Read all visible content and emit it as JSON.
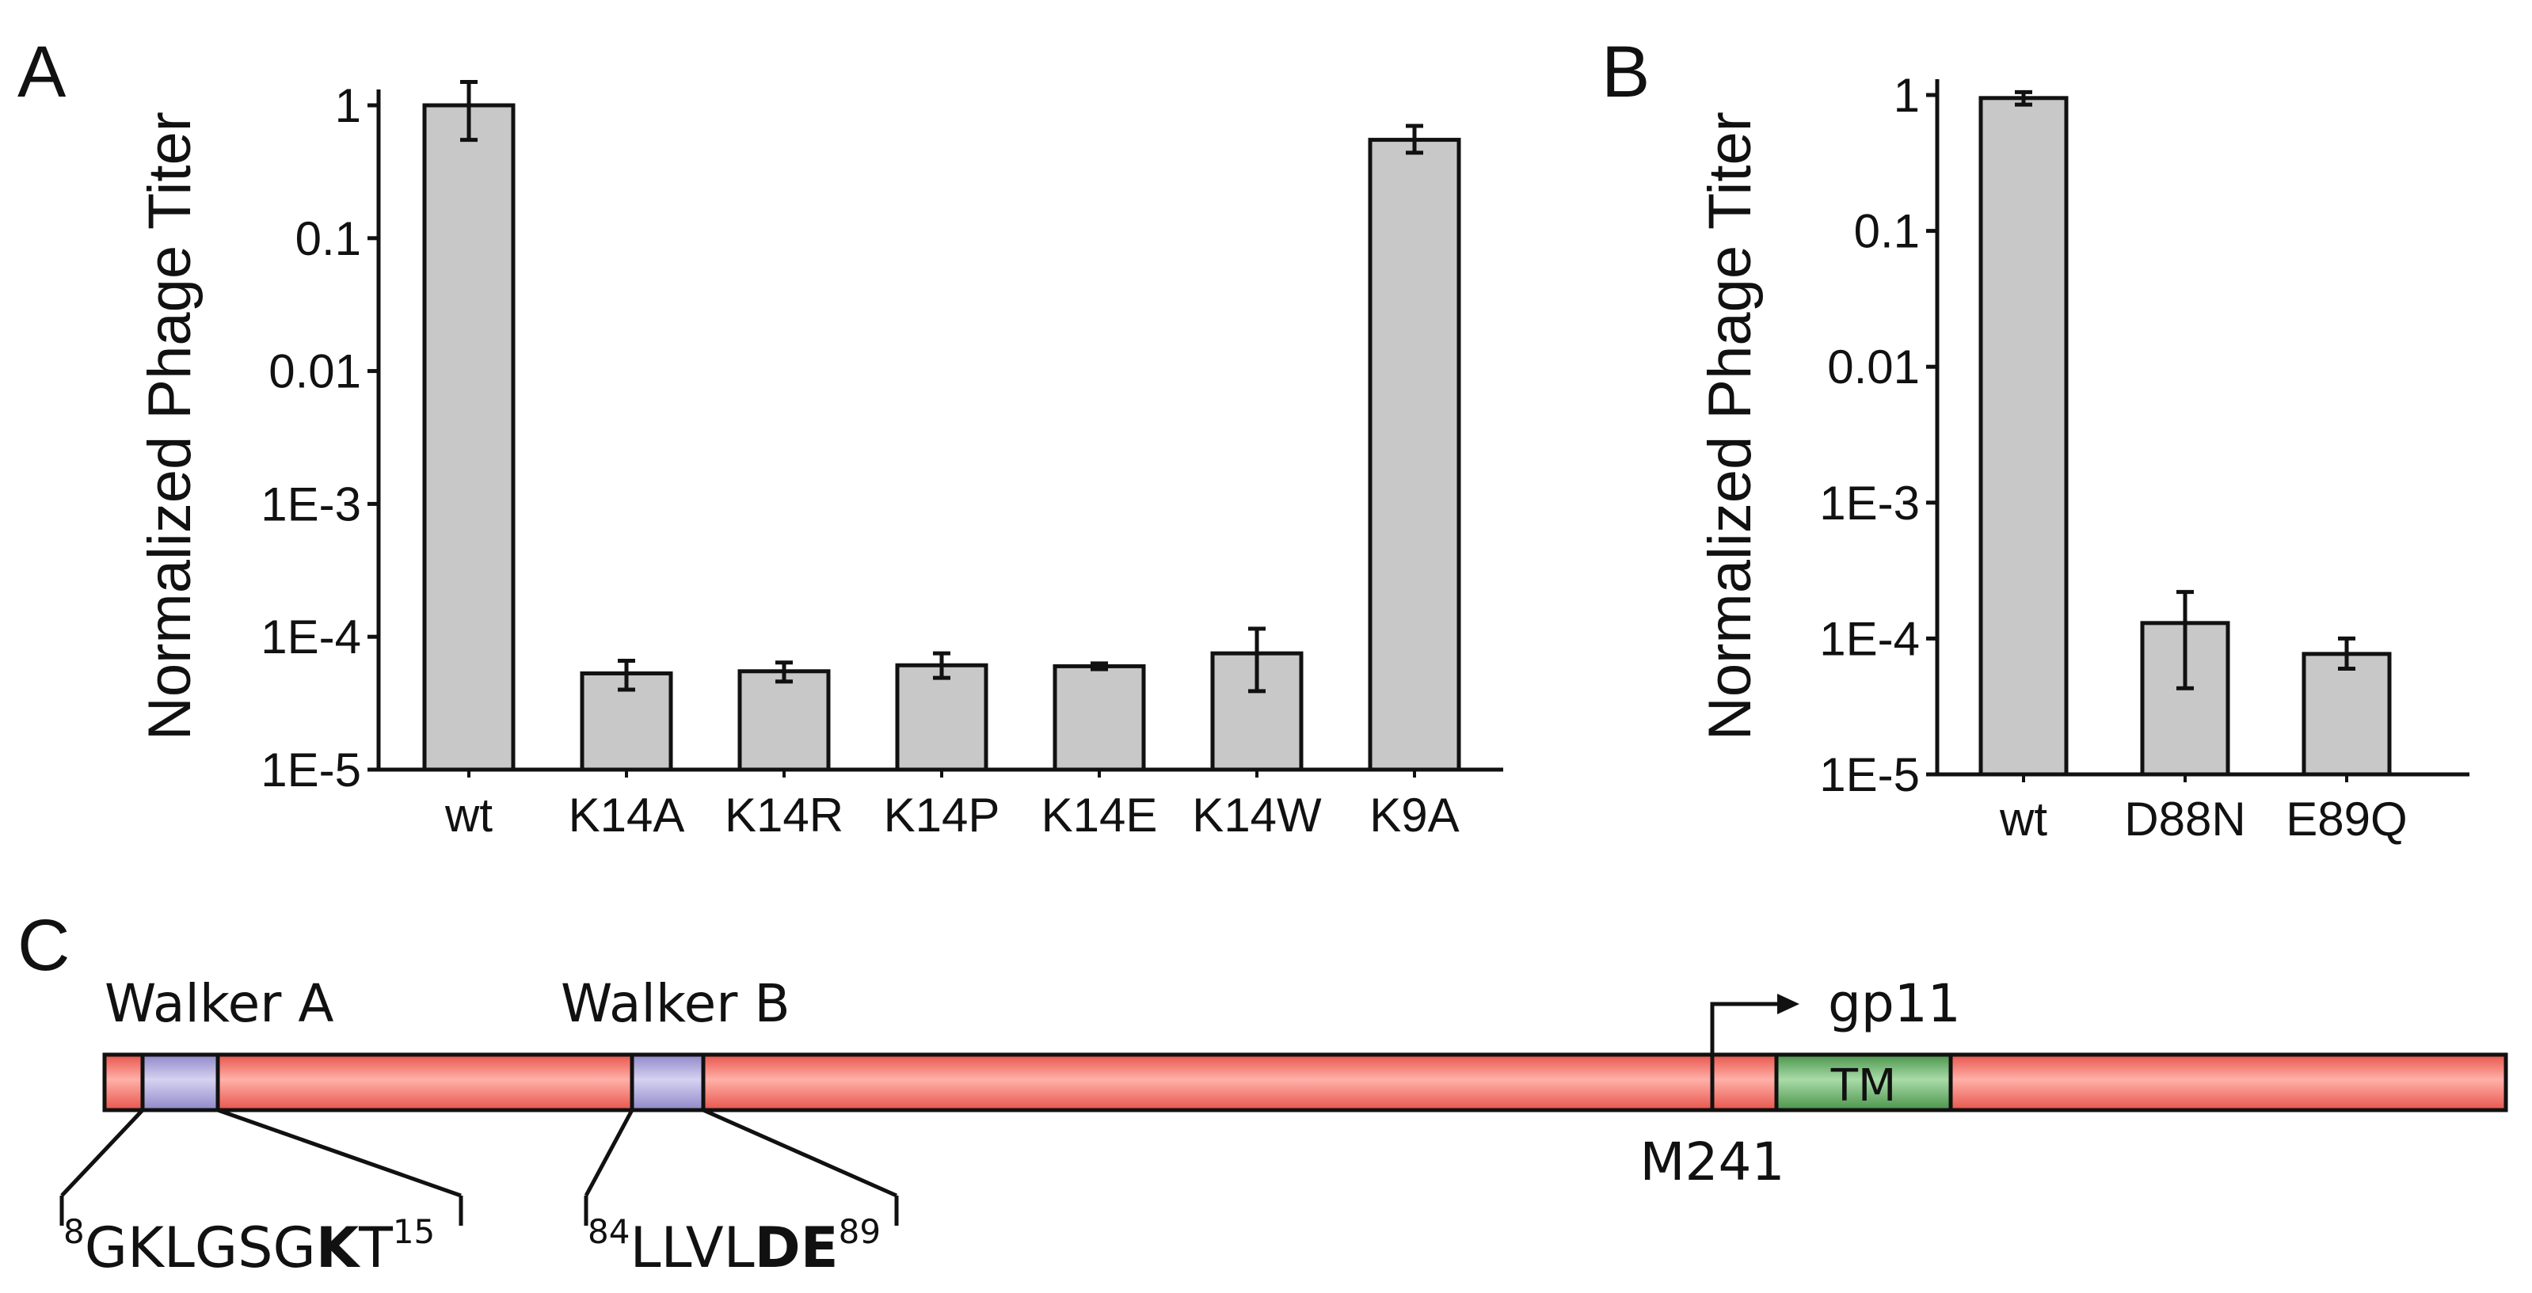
{
  "panel_labels": {
    "a": "A",
    "b": "B",
    "c": "C"
  },
  "chart_data": [
    {
      "panel": "A",
      "type": "bar",
      "yscale": "log",
      "ylabel": "Normalized Phage Titer",
      "xlabel": "",
      "ylim": [
        1e-05,
        1
      ],
      "yticks": [
        {
          "value": 1,
          "label": "1"
        },
        {
          "value": 0.1,
          "label": "0.1"
        },
        {
          "value": 0.01,
          "label": "0.01"
        },
        {
          "value": 0.001,
          "label": "1E-3"
        },
        {
          "value": 0.0001,
          "label": "1E-4"
        },
        {
          "value": 1e-05,
          "label": "1E-5"
        }
      ],
      "categories": [
        "wt",
        "K14A",
        "K14R",
        "K14P",
        "K14E",
        "K14W",
        "K9A"
      ],
      "values": [
        1.0,
        5.3e-05,
        5.5e-05,
        6.1e-05,
        6e-05,
        7.5e-05,
        0.55
      ],
      "error_low": [
        0.55,
        4e-05,
        4.6e-05,
        4.9e-05,
        5.7e-05,
        3.9e-05,
        0.44
      ],
      "error_high": [
        1.5,
        6.6e-05,
        6.4e-05,
        7.5e-05,
        6.3e-05,
        0.000115,
        0.7
      ],
      "bar_color": "#c8c8c8"
    },
    {
      "panel": "B",
      "type": "bar",
      "yscale": "log",
      "ylabel": "Normalized Phage Titer",
      "xlabel": "",
      "ylim": [
        1e-05,
        1
      ],
      "yticks": [
        {
          "value": 1,
          "label": "1"
        },
        {
          "value": 0.1,
          "label": "0.1"
        },
        {
          "value": 0.01,
          "label": "0.01"
        },
        {
          "value": 0.001,
          "label": "1E-3"
        },
        {
          "value": 0.0001,
          "label": "1E-4"
        },
        {
          "value": 1e-05,
          "label": "1E-5"
        }
      ],
      "categories": [
        "wt",
        "D88N",
        "E89Q"
      ],
      "values": [
        0.95,
        0.00013,
        7.7e-05
      ],
      "error_low": [
        0.85,
        4.3e-05,
        6e-05
      ],
      "error_high": [
        1.05,
        0.00022,
        0.0001
      ],
      "bar_color": "#c8c8c8"
    }
  ],
  "diagram": {
    "bar_color": "#f26b63",
    "motif_color": "#a59fd6",
    "tm_color": "#5ea95e",
    "walker_a_label": "Walker A",
    "walker_b_label": "Walker B",
    "tm_label": "TM",
    "m241_label": "M241",
    "gp11_label": "gp11",
    "walker_a_seq": {
      "start": "8",
      "pre": "GKLGSG",
      "bold": "K",
      "post": "T",
      "end": "15"
    },
    "walker_b_seq": {
      "start": "84",
      "pre": "LLVL",
      "bold": "DE",
      "post": "",
      "end": "89"
    }
  }
}
